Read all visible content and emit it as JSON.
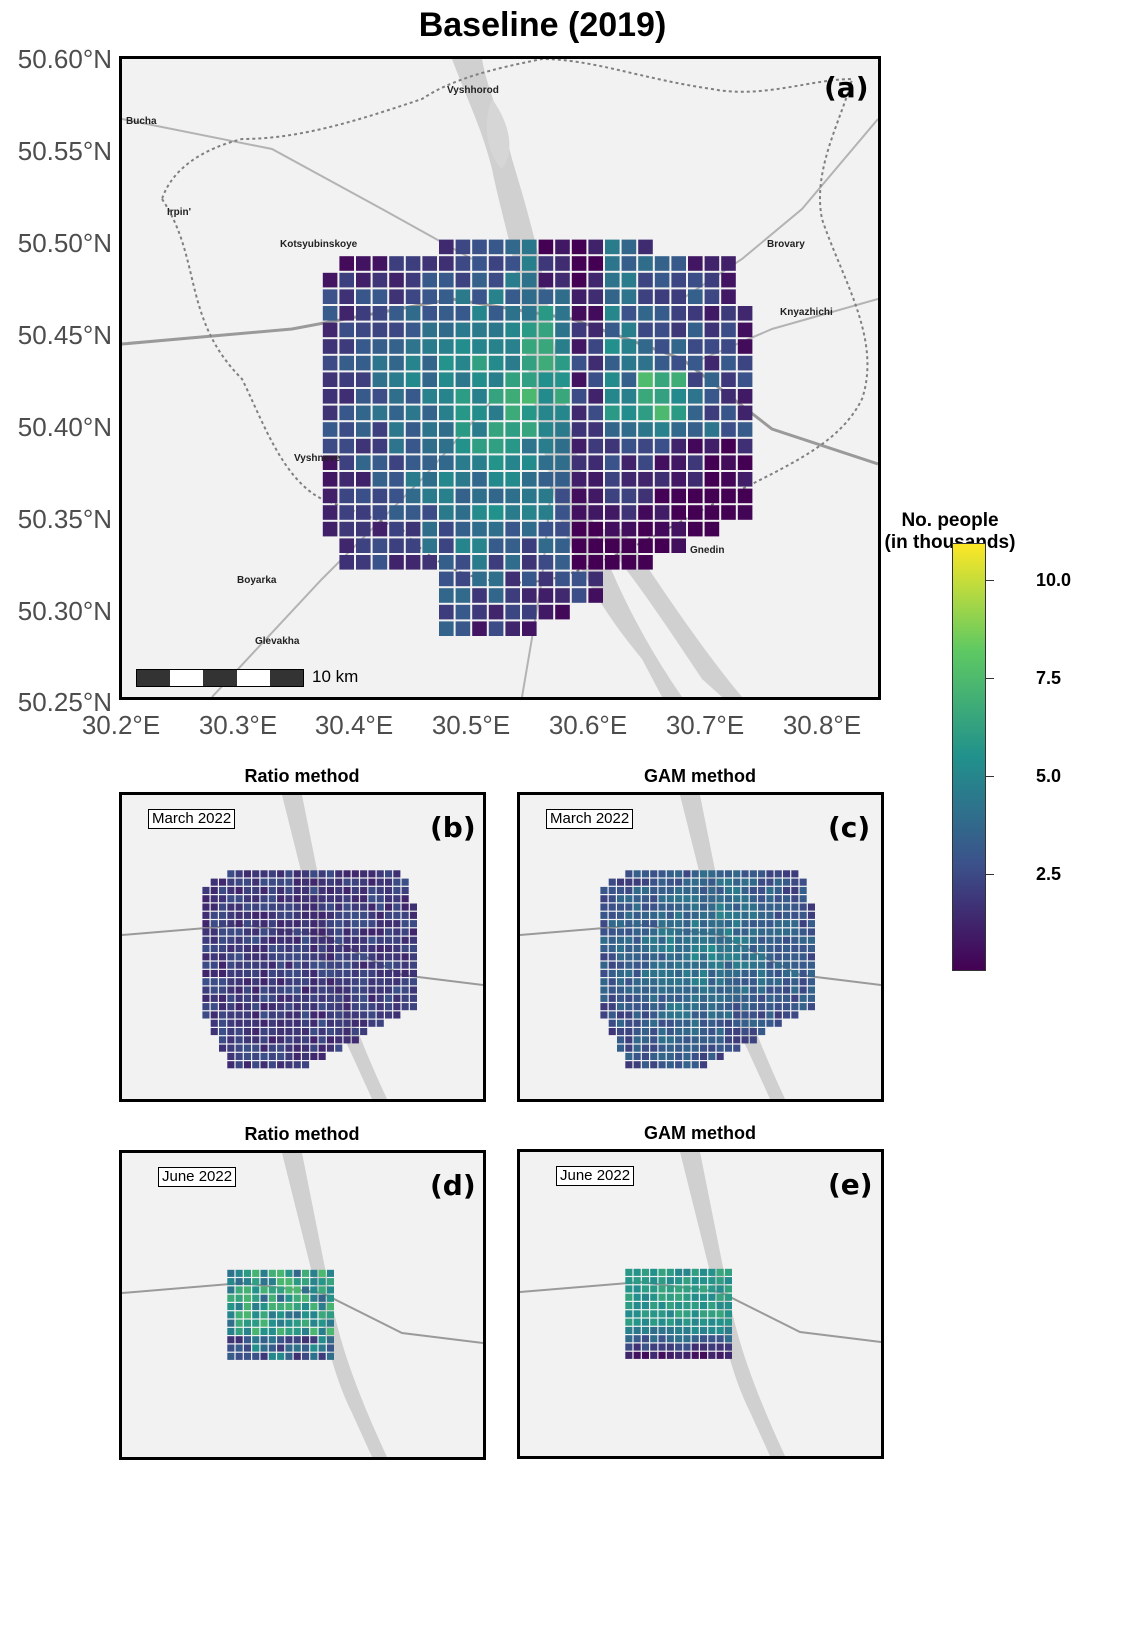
{
  "title": "Baseline (2019)",
  "axes": {
    "y_ticks": [
      "50.60°N",
      "50.55°N",
      "50.50°N",
      "50.45°N",
      "50.40°N",
      "50.35°N",
      "50.30°N",
      "50.25°N"
    ],
    "x_ticks": [
      "30.2°E",
      "30.3°E",
      "30.4°E",
      "30.5°E",
      "30.6°E",
      "30.7°E",
      "30.8°E"
    ],
    "lat_range": [
      50.25,
      50.6
    ],
    "lon_range": [
      30.2,
      30.85
    ]
  },
  "scalebar": "10 km",
  "places": [
    "Vyshhorod",
    "Bucha",
    "Irpin'",
    "Kotsyubinskoye",
    "Brovary",
    "Knyazhichi",
    "Vyshneve",
    "Gnedin",
    "Boyarka",
    "Glevakha"
  ],
  "panels": [
    {
      "letter": "(a)",
      "method": "",
      "month": ""
    },
    {
      "letter": "(b)",
      "method": "Ratio method",
      "month": "March 2022"
    },
    {
      "letter": "(c)",
      "method": "GAM method",
      "month": "March 2022"
    },
    {
      "letter": "(d)",
      "method": "Ratio method",
      "month": "June 2022"
    },
    {
      "letter": "(e)",
      "method": "GAM method",
      "month": "June 2022"
    }
  ],
  "legend": {
    "title_line1": "No. people",
    "title_line2": "(in thousands)",
    "ticks": [
      "10.0",
      "7.5",
      "5.0",
      "2.5"
    ],
    "tick_values": [
      10.0,
      7.5,
      5.0,
      2.5
    ],
    "range": [
      0,
      11
    ],
    "palette": "viridis",
    "colors": [
      "#440154",
      "#3b528b",
      "#21918c",
      "#5ec962",
      "#fde725"
    ]
  },
  "map_colors": {
    "background": "#f2f2f2",
    "water": "#cfcfcf",
    "roads": "#a6a6a6",
    "border": "#7f7f7f"
  }
}
